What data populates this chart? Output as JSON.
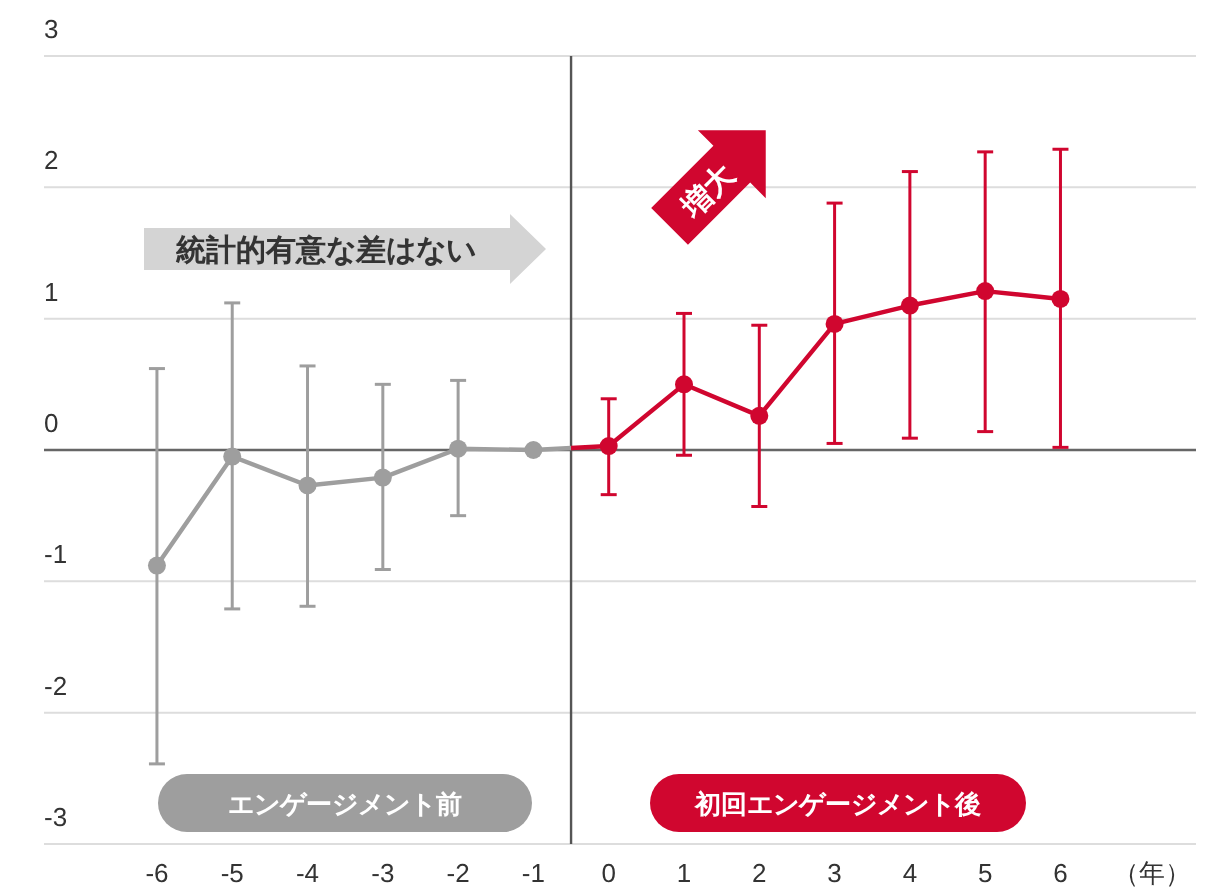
{
  "chart_data": {
    "type": "line",
    "xlabel": "（年）",
    "xlim": [
      -7.5,
      7.8
    ],
    "xticks": [
      -6,
      -5,
      -4,
      -3,
      -2,
      -1,
      0,
      1,
      2,
      3,
      4,
      5,
      6
    ],
    "ylim": [
      -3,
      3
    ],
    "yticks": [
      -3,
      -2,
      -1,
      0,
      1,
      2,
      3
    ],
    "grid": "y",
    "marker": "circle",
    "series": [
      {
        "color": "#9e9e9e",
        "x": [
          -6,
          -5,
          -4,
          -3,
          -2,
          -1
        ],
        "values": [
          -0.88,
          -0.05,
          -0.27,
          -0.21,
          0.01,
          0
        ],
        "errors": [
          [
            -2.39,
            0.62
          ],
          [
            -1.21,
            1.12
          ],
          [
            -1.19,
            0.64
          ],
          [
            -0.91,
            0.5
          ],
          [
            -0.5,
            0.53
          ],
          null
        ]
      },
      {
        "color": "#d0062f",
        "x": [
          0,
          1,
          2,
          3,
          4,
          5,
          6
        ],
        "values": [
          0.03,
          0.5,
          0.26,
          0.96,
          1.1,
          1.21,
          1.15
        ],
        "errors": [
          [
            -0.34,
            0.39
          ],
          [
            -0.04,
            1.04
          ],
          [
            -0.43,
            0.95
          ],
          [
            0.05,
            1.88
          ],
          [
            0.09,
            2.12
          ],
          [
            0.14,
            2.27
          ],
          [
            0.02,
            2.29
          ]
        ]
      }
    ],
    "ref_lines": [
      {
        "axis": "x",
        "value": -0.5,
        "color": "#555555"
      }
    ],
    "annotations": [
      "統計的有意な差はない",
      "増大",
      "エンゲージメント前",
      "初回エンゲージメント後"
    ]
  }
}
